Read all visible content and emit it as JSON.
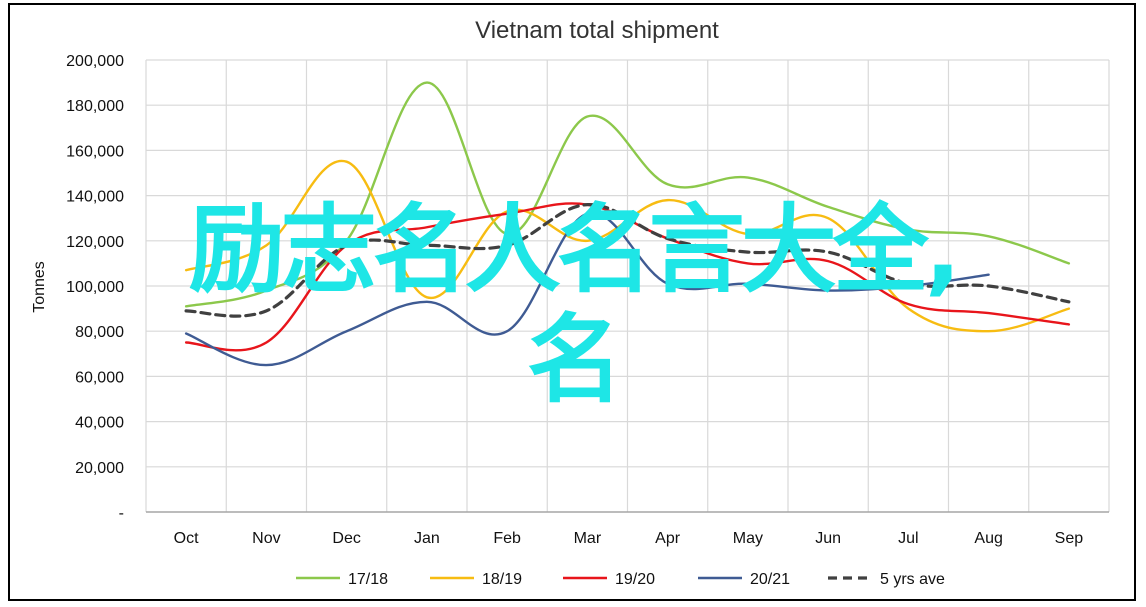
{
  "chart_data": {
    "type": "line",
    "title": "Vietnam total shipment",
    "ylabel": "Tonnes",
    "xlabel": "",
    "categories": [
      "Oct",
      "Nov",
      "Dec",
      "Jan",
      "Feb",
      "Mar",
      "Apr",
      "May",
      "Jun",
      "Jul",
      "Aug",
      "Sep"
    ],
    "ylim": [
      0,
      200000
    ],
    "yticks": [
      0,
      20000,
      40000,
      60000,
      80000,
      100000,
      120000,
      140000,
      160000,
      180000,
      200000
    ],
    "ytick_labels": [
      "-",
      "20,000",
      "40,000",
      "60,000",
      "80,000",
      "100,000",
      "120,000",
      "140,000",
      "160,000",
      "180,000",
      "200,000"
    ],
    "grid": true,
    "legend_position": "bottom",
    "series": [
      {
        "name": "17/18",
        "color": "#8cc84b",
        "dashed": false,
        "values": [
          91000,
          98000,
          120000,
          190000,
          123000,
          175000,
          145000,
          148000,
          135000,
          125000,
          122000,
          110000
        ]
      },
      {
        "name": "18/19",
        "color": "#f7bc12",
        "dashed": false,
        "values": [
          107000,
          118000,
          155000,
          95000,
          133000,
          120000,
          138000,
          123000,
          130000,
          90000,
          80000,
          90000
        ]
      },
      {
        "name": "19/20",
        "color": "#e8151b",
        "dashed": false,
        "values": [
          75000,
          75000,
          118000,
          126000,
          132000,
          136000,
          121000,
          110000,
          111000,
          92000,
          88000,
          83000
        ]
      },
      {
        "name": "20/21",
        "color": "#3f5b93",
        "dashed": false,
        "values": [
          79000,
          65000,
          80000,
          93000,
          80000,
          132000,
          101000,
          101000,
          98000,
          100000,
          105000,
          null
        ]
      },
      {
        "name": "5 yrs ave",
        "color": "#404040",
        "dashed": true,
        "values": [
          89000,
          89000,
          118000,
          118000,
          118000,
          136000,
          121000,
          115000,
          115000,
          101000,
          100000,
          93000
        ]
      }
    ]
  },
  "overlay": {
    "watermark_line1": "励志名人名言大全,",
    "watermark_line2": "名"
  }
}
